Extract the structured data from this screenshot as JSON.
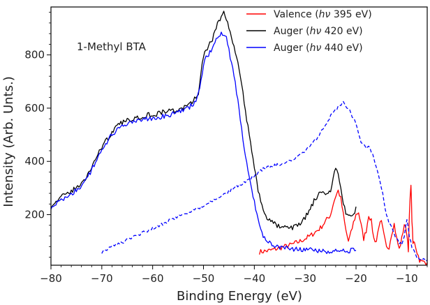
{
  "chart_data": {
    "type": "line",
    "xlabel": "Binding Energy (eV)",
    "ylabel": "Intensity (Arb. Unts.)",
    "xlim": [
      -80,
      -6
    ],
    "ylim": [
      10,
      980
    ],
    "x_ticks": [
      -80,
      -70,
      -60,
      -50,
      -40,
      -30,
      -20,
      -10
    ],
    "y_ticks": [
      200,
      400,
      600,
      800
    ],
    "x_tick_labels": [
      "−80",
      "−70",
      "−60",
      "−50",
      "−40",
      "−30",
      "−20",
      "−10"
    ],
    "y_tick_labels": [
      "200",
      "400",
      "600",
      "800"
    ],
    "annotation": "1-Methyl BTA",
    "legend_position": "top-right",
    "grid": false,
    "series": [
      {
        "name": "Valence (hν 395 eV)",
        "legend_main": "Valence",
        "legend_open": " (",
        "legend_italic": "hν",
        "legend_close": " 395 eV)",
        "color": "#ff0000",
        "style": "solid",
        "x": [
          -39,
          -37,
          -35,
          -33,
          -31,
          -29,
          -27,
          -26,
          -25,
          -24.5,
          -24,
          -23.5,
          -23,
          -22.5,
          -22,
          -21.5,
          -21,
          -20.5,
          -20,
          -19.5,
          -19,
          -18.5,
          -18,
          -17.5,
          -17,
          -16.5,
          -16,
          -15.5,
          -15,
          -14.5,
          -14,
          -13.5,
          -13,
          -12.5,
          -12,
          -11.5,
          -11,
          -10.5,
          -10,
          -9.7,
          -9.5,
          -9.2,
          -9,
          -8.8,
          -8.5,
          -8,
          -7.5,
          -7,
          -6.5,
          -6
        ],
        "y": [
          60,
          65,
          75,
          85,
          100,
          120,
          150,
          175,
          200,
          240,
          270,
          290,
          260,
          200,
          140,
          100,
          130,
          170,
          200,
          210,
          160,
          110,
          140,
          200,
          175,
          110,
          100,
          160,
          170,
          120,
          75,
          80,
          130,
          165,
          110,
          70,
          110,
          165,
          130,
          70,
          200,
          320,
          180,
          90,
          100,
          60,
          30,
          22,
          22,
          20
        ]
      },
      {
        "name": "Auger (hν 420 eV)",
        "legend_main": "Auger",
        "legend_open": "  (",
        "legend_italic": "hν",
        "legend_close": " 420 eV)",
        "color": "#000000",
        "style": "solid",
        "x": [
          -80,
          -79,
          -78,
          -77,
          -76,
          -75,
          -74,
          -73,
          -72,
          -71,
          -70,
          -69,
          -68,
          -67,
          -66,
          -65,
          -64,
          -63,
          -62,
          -61,
          -60,
          -59,
          -58,
          -57,
          -56,
          -55,
          -54,
          -53,
          -52,
          -51,
          -50.5,
          -50,
          -49.5,
          -49,
          -48.5,
          -48,
          -47.5,
          -47,
          -46.5,
          -46,
          -45.5,
          -45,
          -44.5,
          -44,
          -43.5,
          -43,
          -42.5,
          -42,
          -41.5,
          -41,
          -40.5,
          -40,
          -39.5,
          -39,
          -38.5,
          -38,
          -37,
          -36,
          -35,
          -34,
          -33,
          -32,
          -31,
          -30,
          -29,
          -28,
          -27,
          -26,
          -25,
          -24.5,
          -24,
          -23.5,
          -23,
          -22.5,
          -22,
          -21.5,
          -21,
          -20.5,
          -20
        ],
        "y": [
          235,
          250,
          265,
          275,
          290,
          300,
          315,
          340,
          380,
          420,
          455,
          480,
          510,
          530,
          545,
          555,
          560,
          565,
          570,
          575,
          575,
          580,
          585,
          590,
          590,
          595,
          600,
          610,
          625,
          660,
          730,
          790,
          820,
          830,
          850,
          870,
          900,
          925,
          950,
          955,
          940,
          900,
          860,
          830,
          790,
          740,
          700,
          620,
          560,
          500,
          430,
          380,
          320,
          270,
          230,
          200,
          180,
          165,
          155,
          150,
          150,
          155,
          165,
          190,
          220,
          260,
          280,
          275,
          290,
          330,
          375,
          360,
          300,
          240,
          210,
          205,
          190,
          200,
          230
        ]
      },
      {
        "name": "Auger (hν 440 eV)",
        "legend_main": "Auger",
        "legend_open": "  (",
        "legend_italic": "hν",
        "legend_close": " 440 eV)",
        "color": "#0000ff",
        "style": "solid",
        "x": [
          -80,
          -79,
          -78,
          -77,
          -76,
          -75,
          -74,
          -73,
          -72,
          -71,
          -70,
          -69,
          -68,
          -67,
          -66,
          -65,
          -64,
          -63,
          -62,
          -61,
          -60,
          -59,
          -58,
          -57,
          -56,
          -55,
          -54,
          -53,
          -52,
          -51,
          -50.5,
          -50,
          -49.5,
          -49,
          -48.5,
          -48,
          -47.5,
          -47,
          -46.5,
          -46,
          -45.5,
          -45,
          -44.5,
          -44,
          -43.5,
          -43,
          -42.5,
          -42,
          -41.5,
          -41,
          -40.5,
          -40,
          -39.5,
          -39,
          -38.5,
          -38,
          -37,
          -36,
          -35,
          -34,
          -33,
          -32,
          -31,
          -30,
          -29,
          -28,
          -27,
          -26,
          -25,
          -24,
          -23,
          -22,
          -21,
          -20
        ],
        "y": [
          230,
          240,
          255,
          265,
          280,
          290,
          305,
          330,
          370,
          410,
          445,
          470,
          500,
          515,
          530,
          540,
          545,
          550,
          555,
          560,
          560,
          565,
          570,
          575,
          580,
          585,
          590,
          600,
          615,
          650,
          710,
          760,
          790,
          800,
          815,
          835,
          860,
          870,
          880,
          875,
          860,
          820,
          770,
          720,
          660,
          590,
          520,
          440,
          390,
          350,
          300,
          250,
          200,
          160,
          130,
          110,
          95,
          85,
          80,
          75,
          72,
          70,
          68,
          67,
          66,
          65,
          64,
          63,
          62,
          62,
          62,
          63,
          64,
          66
        ]
      },
      {
        "name": "Auger (hν 440 eV) dashed",
        "color": "#0000ff",
        "style": "dashed",
        "x": [
          -70,
          -68,
          -66,
          -64,
          -62,
          -60,
          -58,
          -56,
          -54,
          -52,
          -50,
          -48,
          -46,
          -44,
          -42,
          -41,
          -40,
          -39,
          -38,
          -37,
          -36,
          -35,
          -34,
          -33,
          -32,
          -31,
          -30,
          -29,
          -28,
          -27,
          -26,
          -25,
          -24,
          -23.5,
          -23,
          -22.5,
          -22,
          -21.5,
          -21,
          -20.5,
          -20,
          -19.5,
          -19,
          -18.5,
          -18,
          -17.5,
          -17,
          -16.5,
          -16,
          -15.5,
          -15,
          -14.5,
          -14,
          -13.5,
          -13,
          -12.5,
          -12,
          -11.5,
          -11,
          -10.5,
          -10,
          -9.5,
          -9,
          -8.5,
          -8,
          -7,
          -6
        ],
        "y": [
          60,
          80,
          95,
          115,
          130,
          150,
          165,
          185,
          200,
          215,
          235,
          255,
          275,
          300,
          320,
          330,
          345,
          360,
          375,
          380,
          385,
          390,
          395,
          400,
          410,
          425,
          440,
          460,
          480,
          505,
          540,
          570,
          595,
          605,
          615,
          625,
          610,
          600,
          580,
          560,
          540,
          500,
          470,
          460,
          450,
          455,
          440,
          410,
          380,
          340,
          300,
          250,
          200,
          170,
          150,
          130,
          110,
          95,
          90,
          120,
          180,
          120,
          80,
          60,
          40,
          30,
          30
        ]
      }
    ]
  }
}
